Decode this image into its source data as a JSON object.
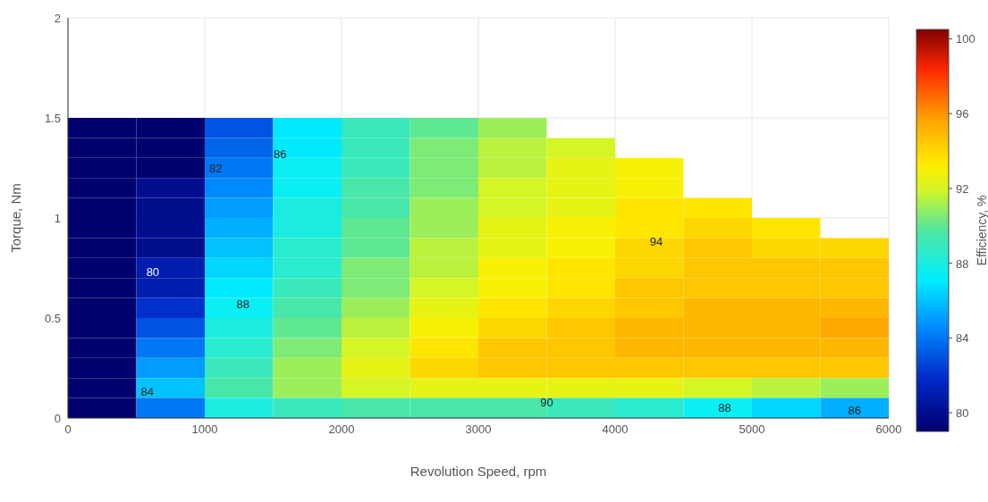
{
  "chart_data": {
    "type": "heatmap",
    "xlabel": "Revolution Speed, rpm",
    "ylabel": "Torque, Nm",
    "clabel": "Efficiency, %",
    "x": [
      250,
      750,
      1250,
      1750,
      2250,
      2750,
      3250,
      3750,
      4250,
      4750,
      5250,
      5750
    ],
    "y": [
      1.45,
      1.35,
      1.25,
      1.15,
      1.05,
      0.95,
      0.85,
      0.75,
      0.65,
      0.55,
      0.45,
      0.35,
      0.25,
      0.15,
      0.05
    ],
    "cells": [
      [
        79,
        79,
        83,
        87,
        89,
        90,
        91,
        null,
        null,
        null,
        null,
        null
      ],
      [
        79,
        79,
        83.5,
        87,
        89,
        90.5,
        91.5,
        92,
        null,
        null,
        null,
        null
      ],
      [
        79,
        79,
        84,
        87.5,
        89,
        90.5,
        91.5,
        92.5,
        93,
        null,
        null,
        null
      ],
      [
        79,
        80,
        84.5,
        87.5,
        89.5,
        90.5,
        92,
        92.5,
        93,
        null,
        null,
        null
      ],
      [
        79,
        80,
        85,
        88,
        89.5,
        91,
        92,
        92.5,
        93.5,
        93.5,
        null,
        null
      ],
      [
        79,
        80,
        85.5,
        88,
        90,
        91,
        92.5,
        93,
        93.5,
        94,
        93.5,
        null
      ],
      [
        79,
        80,
        86,
        88.5,
        90,
        91.5,
        92.5,
        93,
        94,
        94.5,
        94,
        94
      ],
      [
        79,
        81,
        86.5,
        88.5,
        90.5,
        91.5,
        93,
        93.5,
        94,
        94.5,
        94.5,
        94.5
      ],
      [
        79,
        81,
        87,
        89,
        90.5,
        92,
        93,
        93.5,
        94.5,
        94.5,
        94.5,
        94.5
      ],
      [
        79,
        82,
        87.5,
        89.5,
        91,
        92.5,
        93.5,
        94,
        94.5,
        95,
        95,
        95
      ],
      [
        79,
        83,
        88,
        90,
        91.5,
        93,
        94,
        94.5,
        95,
        95,
        95,
        95.5
      ],
      [
        79,
        84,
        88.5,
        90.5,
        92,
        93.5,
        94.5,
        94.5,
        95,
        95,
        95,
        95
      ],
      [
        79,
        85,
        89,
        91,
        92.5,
        94,
        94.5,
        94.5,
        94.5,
        94.5,
        94.5,
        94.5
      ],
      [
        79,
        86,
        89.5,
        91,
        92,
        92.5,
        92.5,
        92.5,
        92.5,
        92,
        91.5,
        91
      ],
      [
        79,
        84,
        88,
        89,
        89.5,
        89.5,
        89.5,
        89,
        88.5,
        87.5,
        86.5,
        85.5
      ]
    ],
    "xlim": [
      0,
      6000
    ],
    "xticks": [
      0,
      1000,
      2000,
      3000,
      4000,
      5000,
      6000
    ],
    "ylim": [
      0,
      2
    ],
    "yticks": [
      0,
      0.5,
      1,
      1.5,
      2
    ],
    "clim": [
      79,
      100.5
    ],
    "cticks": [
      80,
      84,
      88,
      92,
      96,
      100
    ],
    "grid": true,
    "annotations": [
      "80",
      "82",
      "86",
      "88",
      "84",
      "94",
      "90",
      "88",
      "86"
    ]
  }
}
